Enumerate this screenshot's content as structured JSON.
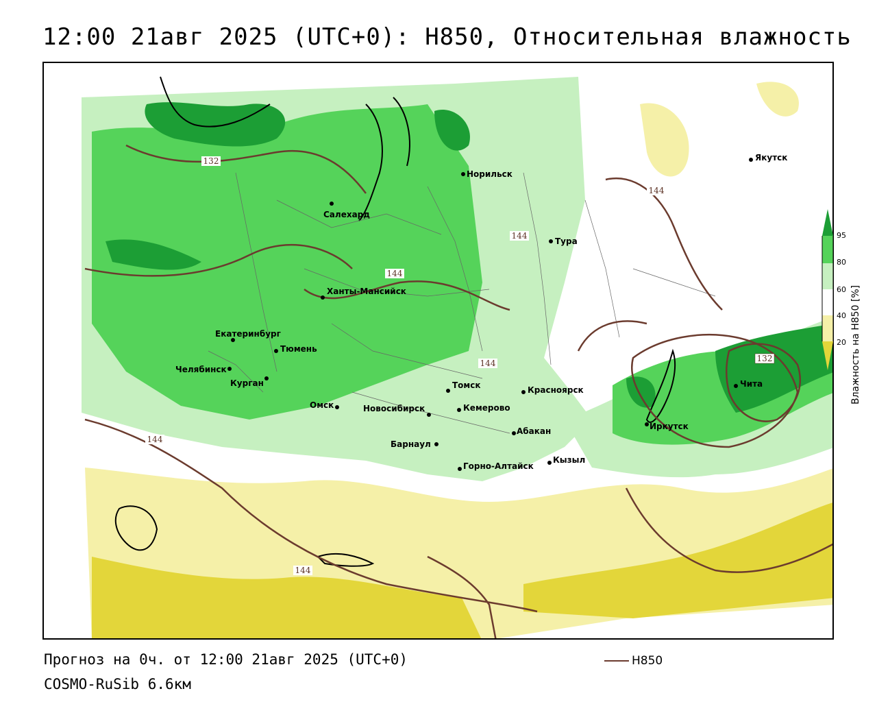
{
  "title": "12:00 21авг 2025 (UTC+0): H850, Относительная влажность",
  "footer": {
    "forecast": "Прогноз на 0ч. от 12:00 21авг 2025 (UTC+0)",
    "model": "COSMO-RuSib 6.6км"
  },
  "isoline_legend": {
    "label": "H850",
    "color": "#6b3b2e"
  },
  "colorbar": {
    "title": "Влажность на H850 [%]",
    "ticks": [
      "95",
      "80",
      "60",
      "40",
      "20"
    ],
    "colors": {
      "very_dry": "#e3d63a",
      "dry": "#f5f0a8",
      "neutral": "#ffffff",
      "moist": "#c6f0c0",
      "wet": "#55d35a",
      "very_wet": "#1c9e35"
    }
  },
  "cities": [
    {
      "name": "Норильск"
    },
    {
      "name": "Салехард"
    },
    {
      "name": "Тура"
    },
    {
      "name": "Якутск"
    },
    {
      "name": "Ханты-Мансийск"
    },
    {
      "name": "Екатеринбург"
    },
    {
      "name": "Тюмень"
    },
    {
      "name": "Челябинск"
    },
    {
      "name": "Курган"
    },
    {
      "name": "Омск"
    },
    {
      "name": "Новосибирск"
    },
    {
      "name": "Томск"
    },
    {
      "name": "Кемерово"
    },
    {
      "name": "Красноярск"
    },
    {
      "name": "Абакан"
    },
    {
      "name": "Барнаул"
    },
    {
      "name": "Горно-Алтайск"
    },
    {
      "name": "Кызыл"
    },
    {
      "name": "Иркутск"
    },
    {
      "name": "Чита"
    }
  ],
  "isolines": [
    {
      "label": "132"
    },
    {
      "label": "144"
    },
    {
      "label": "144"
    },
    {
      "label": "144"
    },
    {
      "label": "144"
    },
    {
      "label": "144"
    },
    {
      "label": "144"
    },
    {
      "label": "132"
    }
  ]
}
